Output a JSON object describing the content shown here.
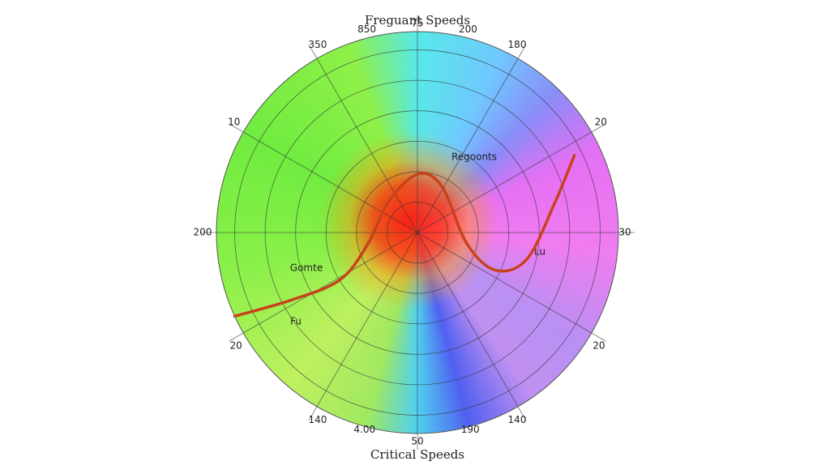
{
  "chart_data": {
    "type": "polar-line",
    "title": "Freguant Speeds",
    "x_label": "Critical Speeds",
    "angular_labels": [
      "75",
      "200",
      "180",
      "20",
      "30",
      "20",
      "140",
      "190",
      "50",
      "4.00",
      "140",
      "20",
      "200",
      "10",
      "350",
      "850"
    ],
    "annotations": [
      "Regoonts",
      "Gomte",
      "Fu",
      "Lu"
    ],
    "rlim": [
      0,
      1
    ],
    "grid": true,
    "series": [
      {
        "color": "#c8421c",
        "theta": [
          245.4,
          241.8,
          238.6,
          257.8,
          316.6,
          360,
          387.8,
          462.2,
          475.8,
          463.7,
          437.7,
          423.8
        ],
        "r": [
          1.0,
          0.71,
          0.45,
          0.25,
          0.21,
          0.29,
          0.26,
          0.25,
          0.43,
          0.56,
          0.7,
          0.87
        ]
      }
    ]
  }
}
